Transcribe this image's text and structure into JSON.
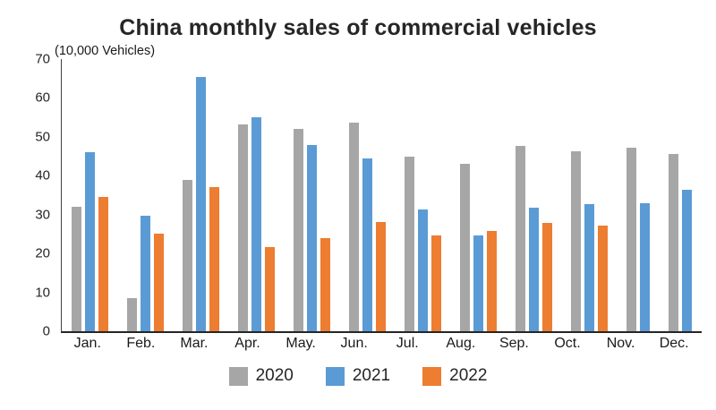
{
  "title": "China monthly sales of commercial vehicles",
  "axis_unit_label": "(10,000 Vehicles)",
  "chart_data": {
    "type": "bar",
    "categories": [
      "Jan.",
      "Feb.",
      "Mar.",
      "Apr.",
      "May.",
      "Jun.",
      "Jul.",
      "Aug.",
      "Sep.",
      "Oct.",
      "Nov.",
      "Dec."
    ],
    "series": [
      {
        "name": "2020",
        "color": "#a6a6a6",
        "values": [
          32,
          8.5,
          39,
          53.3,
          52,
          53.6,
          44.8,
          43.1,
          47.7,
          46.4,
          47.3,
          45.6
        ]
      },
      {
        "name": "2021",
        "color": "#5b9bd5",
        "values": [
          46,
          29.8,
          65.3,
          55,
          48,
          44.5,
          31.3,
          24.7,
          31.7,
          32.6,
          33,
          36.5
        ]
      },
      {
        "name": "2022",
        "color": "#ed7d31",
        "values": [
          34.5,
          25,
          37.1,
          21.7,
          23.9,
          28.1,
          24.6,
          25.8,
          27.9,
          27.2,
          null,
          null
        ]
      }
    ],
    "title": "China monthly sales of commercial vehicles",
    "xlabel": "",
    "ylabel": "(10,000 Vehicles)",
    "ylim": [
      0,
      70
    ],
    "yticks": [
      0,
      10,
      20,
      30,
      40,
      50,
      60,
      70
    ],
    "grid": false,
    "legend_position": "bottom",
    "axis_color": "#404040"
  }
}
